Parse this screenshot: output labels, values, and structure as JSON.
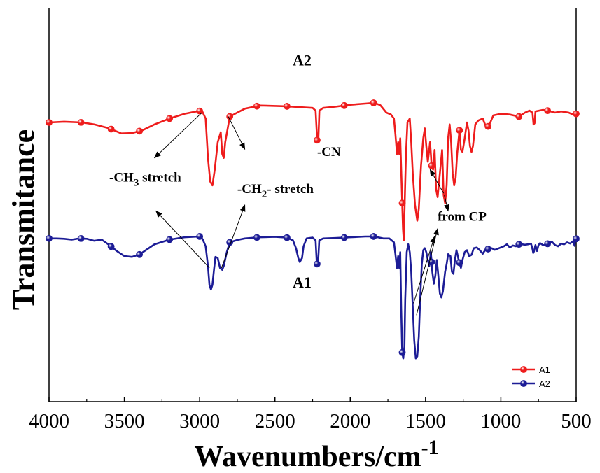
{
  "chart_data": {
    "type": "line",
    "xlabel": "Wavenumbers/cm",
    "xlabel_sup": "-1",
    "ylabel": "Transmitance",
    "xlim": [
      4000,
      500
    ],
    "ylim": [
      0,
      100
    ],
    "xticks": [
      4000,
      3500,
      3000,
      2500,
      2000,
      1500,
      1000,
      500
    ],
    "grid": false,
    "legend_position": "bottom-right",
    "colors": {
      "A1": "#ee1c1c",
      "A2": "#1c1c96"
    },
    "series": [
      {
        "name": "A1",
        "color": "#ee1c1c",
        "points": [
          [
            4000,
            71
          ],
          [
            3900,
            71.2
          ],
          [
            3780,
            71
          ],
          [
            3700,
            70.5
          ],
          [
            3600,
            69.5
          ],
          [
            3520,
            68.2
          ],
          [
            3450,
            68.3
          ],
          [
            3380,
            69
          ],
          [
            3300,
            70.5
          ],
          [
            3200,
            72
          ],
          [
            3100,
            73.2
          ],
          [
            3020,
            73.8
          ],
          [
            2985,
            74
          ],
          [
            2960,
            72
          ],
          [
            2945,
            62
          ],
          [
            2930,
            56
          ],
          [
            2915,
            55
          ],
          [
            2900,
            59
          ],
          [
            2880,
            66
          ],
          [
            2860,
            68.5
          ],
          [
            2850,
            63
          ],
          [
            2840,
            62
          ],
          [
            2830,
            66
          ],
          [
            2800,
            72.5
          ],
          [
            2750,
            73.5
          ],
          [
            2700,
            74.5
          ],
          [
            2600,
            75.3
          ],
          [
            2420,
            75.1
          ],
          [
            2300,
            74.8
          ],
          [
            2250,
            74.7
          ],
          [
            2230,
            74
          ],
          [
            2220,
            66.5
          ],
          [
            2212,
            66.5
          ],
          [
            2205,
            74
          ],
          [
            2180,
            74.7
          ],
          [
            2100,
            75
          ],
          [
            2000,
            75.5
          ],
          [
            1900,
            75.8
          ],
          [
            1840,
            76
          ],
          [
            1800,
            75.4
          ],
          [
            1760,
            73.5
          ],
          [
            1730,
            73
          ],
          [
            1710,
            72
          ],
          [
            1700,
            68
          ],
          [
            1690,
            63
          ],
          [
            1682,
            66
          ],
          [
            1675,
            63
          ],
          [
            1668,
            67
          ],
          [
            1660,
            57
          ],
          [
            1650,
            44
          ],
          [
            1645,
            41
          ],
          [
            1640,
            48
          ],
          [
            1630,
            63
          ],
          [
            1620,
            71
          ],
          [
            1605,
            72
          ],
          [
            1595,
            66
          ],
          [
            1585,
            58
          ],
          [
            1570,
            50
          ],
          [
            1555,
            46
          ],
          [
            1545,
            49
          ],
          [
            1530,
            60
          ],
          [
            1515,
            67
          ],
          [
            1505,
            69.5
          ],
          [
            1495,
            65
          ],
          [
            1485,
            61
          ],
          [
            1470,
            66
          ],
          [
            1460,
            60
          ],
          [
            1450,
            59
          ],
          [
            1440,
            64
          ],
          [
            1430,
            54
          ],
          [
            1420,
            52
          ],
          [
            1410,
            56
          ],
          [
            1400,
            60
          ],
          [
            1390,
            64
          ],
          [
            1380,
            52.5
          ],
          [
            1370,
            50.5
          ],
          [
            1360,
            55
          ],
          [
            1350,
            67
          ],
          [
            1340,
            70.5
          ],
          [
            1330,
            66
          ],
          [
            1320,
            58
          ],
          [
            1310,
            55
          ],
          [
            1300,
            57
          ],
          [
            1290,
            63
          ],
          [
            1275,
            69
          ],
          [
            1265,
            64
          ],
          [
            1255,
            63.5
          ],
          [
            1240,
            67
          ],
          [
            1225,
            71
          ],
          [
            1215,
            69
          ],
          [
            1205,
            65
          ],
          [
            1195,
            63.5
          ],
          [
            1185,
            65
          ],
          [
            1170,
            70.5
          ],
          [
            1150,
            71.5
          ],
          [
            1120,
            72
          ],
          [
            1100,
            70
          ],
          [
            1085,
            70
          ],
          [
            1070,
            71
          ],
          [
            1050,
            72.8
          ],
          [
            1000,
            73.2
          ],
          [
            940,
            73
          ],
          [
            880,
            72.5
          ],
          [
            840,
            73.5
          ],
          [
            810,
            74
          ],
          [
            790,
            73.5
          ],
          [
            783,
            70.5
          ],
          [
            776,
            70.8
          ],
          [
            770,
            73.8
          ],
          [
            720,
            74.2
          ],
          [
            690,
            74
          ],
          [
            640,
            73.5
          ],
          [
            600,
            73.8
          ],
          [
            550,
            73.5
          ],
          [
            520,
            73
          ],
          [
            500,
            73.2
          ]
        ]
      },
      {
        "name": "A2",
        "color": "#1c1c96",
        "points": [
          [
            4000,
            41.5
          ],
          [
            3950,
            41.5
          ],
          [
            3900,
            41.4
          ],
          [
            3850,
            41.2
          ],
          [
            3800,
            41.5
          ],
          [
            3750,
            41.4
          ],
          [
            3700,
            40.9
          ],
          [
            3650,
            41.2
          ],
          [
            3600,
            39.8
          ],
          [
            3550,
            38.3
          ],
          [
            3500,
            37
          ],
          [
            3450,
            36.8
          ],
          [
            3400,
            37.4
          ],
          [
            3350,
            38.7
          ],
          [
            3300,
            40
          ],
          [
            3200,
            41.2
          ],
          [
            3100,
            41.8
          ],
          [
            3000,
            42
          ],
          [
            2980,
            41.3
          ],
          [
            2960,
            39.5
          ],
          [
            2945,
            34.5
          ],
          [
            2935,
            29.7
          ],
          [
            2925,
            28.5
          ],
          [
            2915,
            29.7
          ],
          [
            2905,
            33.5
          ],
          [
            2895,
            36.8
          ],
          [
            2880,
            36.5
          ],
          [
            2865,
            34
          ],
          [
            2850,
            33.5
          ],
          [
            2840,
            34.5
          ],
          [
            2820,
            38
          ],
          [
            2800,
            40.5
          ],
          [
            2750,
            41.1
          ],
          [
            2700,
            41.5
          ],
          [
            2600,
            41.8
          ],
          [
            2500,
            41.9
          ],
          [
            2420,
            41.7
          ],
          [
            2380,
            41
          ],
          [
            2360,
            39
          ],
          [
            2345,
            36.5
          ],
          [
            2335,
            35.5
          ],
          [
            2320,
            36.5
          ],
          [
            2310,
            39.5
          ],
          [
            2290,
            41.5
          ],
          [
            2250,
            41.7
          ],
          [
            2230,
            41
          ],
          [
            2222,
            35
          ],
          [
            2214,
            35
          ],
          [
            2206,
            41
          ],
          [
            2180,
            41.5
          ],
          [
            2100,
            41.6
          ],
          [
            2000,
            41.8
          ],
          [
            1900,
            42
          ],
          [
            1840,
            42
          ],
          [
            1780,
            41.5
          ],
          [
            1740,
            41.5
          ],
          [
            1710,
            40.5
          ],
          [
            1700,
            37.5
          ],
          [
            1690,
            34
          ],
          [
            1682,
            37
          ],
          [
            1675,
            34
          ],
          [
            1668,
            38
          ],
          [
            1662,
            24
          ],
          [
            1655,
            12.5
          ],
          [
            1648,
            11
          ],
          [
            1640,
            14
          ],
          [
            1635,
            26
          ],
          [
            1625,
            38
          ],
          [
            1615,
            40
          ],
          [
            1605,
            38
          ],
          [
            1595,
            33
          ],
          [
            1585,
            24
          ],
          [
            1575,
            15.5
          ],
          [
            1565,
            11
          ],
          [
            1555,
            11.5
          ],
          [
            1545,
            16.5
          ],
          [
            1535,
            26.5
          ],
          [
            1525,
            35
          ],
          [
            1515,
            38.5
          ],
          [
            1505,
            39
          ],
          [
            1495,
            38
          ],
          [
            1485,
            36
          ],
          [
            1475,
            34.5
          ],
          [
            1465,
            38
          ],
          [
            1455,
            33
          ],
          [
            1445,
            30
          ],
          [
            1435,
            32
          ],
          [
            1425,
            36
          ],
          [
            1415,
            32
          ],
          [
            1405,
            27.5
          ],
          [
            1395,
            26.5
          ],
          [
            1385,
            28
          ],
          [
            1370,
            33
          ],
          [
            1360,
            35
          ],
          [
            1350,
            37.5
          ],
          [
            1335,
            37
          ],
          [
            1325,
            33
          ],
          [
            1315,
            32.5
          ],
          [
            1305,
            36
          ],
          [
            1295,
            38.5
          ],
          [
            1280,
            36
          ],
          [
            1265,
            34
          ],
          [
            1255,
            36
          ],
          [
            1240,
            38
          ],
          [
            1225,
            38.5
          ],
          [
            1210,
            37
          ],
          [
            1195,
            37.3
          ],
          [
            1180,
            39
          ],
          [
            1160,
            39.2
          ],
          [
            1140,
            38.5
          ],
          [
            1120,
            37.6
          ],
          [
            1100,
            38.8
          ],
          [
            1080,
            38.8
          ],
          [
            1060,
            39
          ],
          [
            1040,
            38.6
          ],
          [
            1000,
            39.2
          ],
          [
            980,
            39.5
          ],
          [
            960,
            40
          ],
          [
            940,
            39.2
          ],
          [
            920,
            39.7
          ],
          [
            900,
            39.5
          ],
          [
            880,
            40
          ],
          [
            860,
            40
          ],
          [
            840,
            39.9
          ],
          [
            820,
            40
          ],
          [
            800,
            40.2
          ],
          [
            790,
            38.8
          ],
          [
            785,
            37.8
          ],
          [
            780,
            38.2
          ],
          [
            775,
            39
          ],
          [
            770,
            39.8
          ],
          [
            760,
            38.3
          ],
          [
            750,
            39.8
          ],
          [
            740,
            40.3
          ],
          [
            720,
            39.8
          ],
          [
            700,
            39.8
          ],
          [
            680,
            40.5
          ],
          [
            660,
            40.6
          ],
          [
            640,
            39.8
          ],
          [
            620,
            39.5
          ],
          [
            600,
            40.2
          ],
          [
            580,
            40
          ],
          [
            560,
            40.5
          ],
          [
            540,
            40.2
          ],
          [
            520,
            40.8
          ],
          [
            510,
            39.6
          ],
          [
            505,
            41.5
          ],
          [
            500,
            41.4
          ]
        ]
      }
    ],
    "marker_x": [
      4000,
      3788,
      3588,
      3400,
      3200,
      3000,
      2800,
      2620,
      2420,
      2220,
      2040,
      1845,
      1655,
      1460,
      1275,
      1085,
      880,
      690,
      500
    ],
    "series_labels": [
      {
        "text": "A2",
        "x": 2320,
        "y": 85.5
      },
      {
        "text": "A1",
        "x": 2320,
        "y": 29
      }
    ],
    "annotations": [
      {
        "text": "-CN",
        "x": 2220,
        "y": 62.5,
        "sub": "",
        "suffix": ""
      },
      {
        "text": "-CH",
        "sub": "3",
        "suffix": " stretch",
        "x": 3600,
        "y": 56
      },
      {
        "text": "-CH",
        "sub": "2",
        "suffix": "- stretch",
        "x": 2750,
        "y": 53
      },
      {
        "text": "from CP",
        "x": 1420,
        "y": 46,
        "sub": "",
        "suffix": ""
      }
    ],
    "arrows": [
      {
        "from": [
          2985,
          73.5
        ],
        "to": [
          3300,
          62
        ]
      },
      {
        "from": [
          2810,
          72.5
        ],
        "to": [
          2700,
          64.2
        ]
      },
      {
        "from": [
          2935,
          34
        ],
        "to": [
          3290,
          48.5
        ]
      },
      {
        "from": [
          2855,
          34
        ],
        "to": [
          2700,
          50
        ]
      },
      {
        "from": [
          1380,
          53
        ],
        "to": [
          1470,
          59
        ]
      },
      {
        "from": [
          1375,
          52.5
        ],
        "to": [
          1350,
          48.5
        ]
      },
      {
        "from": [
          1560,
          22
        ],
        "to": [
          1420,
          44
        ]
      },
      {
        "from": [
          1580,
          25
        ],
        "to": [
          1440,
          42
        ]
      }
    ],
    "legend": [
      {
        "label": "A1",
        "color": "#ee1c1c"
      },
      {
        "label": "A2",
        "color": "#1c1c96"
      }
    ]
  }
}
